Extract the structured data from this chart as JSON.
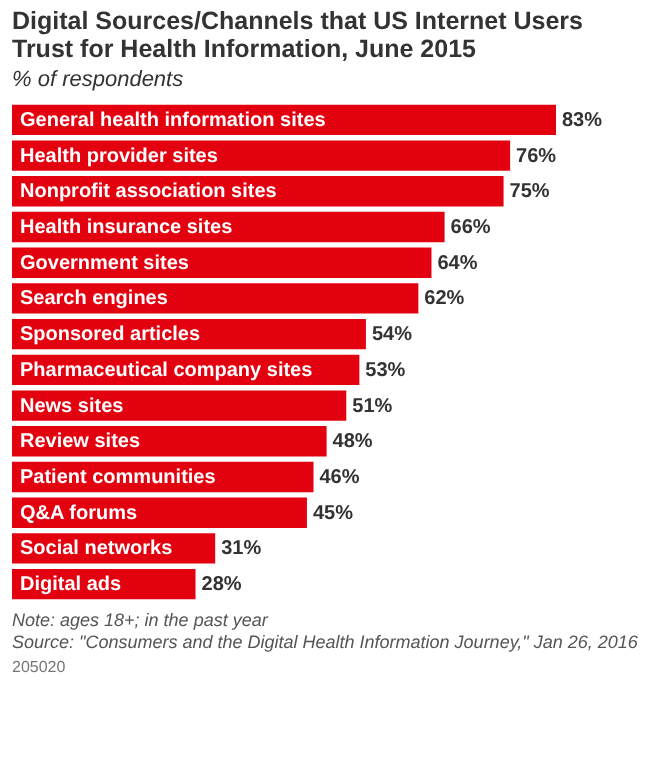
{
  "chart_data": {
    "type": "bar",
    "orientation": "horizontal",
    "title": "Digital Sources/Channels that US Internet Users Trust for Health Information, June 2015",
    "subtitle": "% of respondents",
    "categories": [
      "General health information sites",
      "Health provider sites",
      "Nonprofit association sites",
      "Health insurance sites",
      "Government sites",
      "Search engines",
      "Sponsored articles",
      "Pharmaceutical company sites",
      "News sites",
      "Review sites",
      "Patient communities",
      "Q&A forums",
      "Social networks",
      "Digital ads"
    ],
    "values": [
      83,
      76,
      75,
      66,
      64,
      62,
      54,
      53,
      51,
      48,
      46,
      45,
      31,
      28
    ],
    "value_labels": [
      "83%",
      "76%",
      "75%",
      "66%",
      "64%",
      "62%",
      "54%",
      "53%",
      "51%",
      "48%",
      "46%",
      "45%",
      "31%",
      "28%"
    ],
    "color": "#e3000f",
    "annotations": [
      "Note: ages 18+; in the past year",
      "Source: \"Consumers and the Digital Health Information Journey,\" Jan 26, 2016",
      "205020"
    ]
  }
}
